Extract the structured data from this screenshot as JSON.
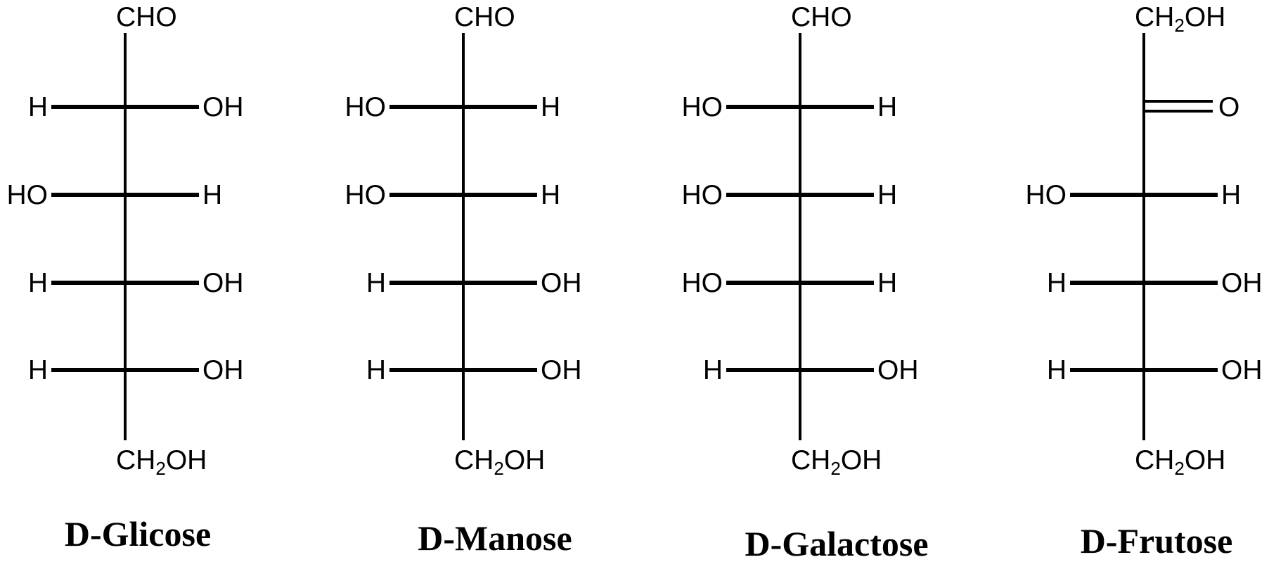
{
  "colors": {
    "background": "#ffffff",
    "ink": "#000000"
  },
  "molecules": [
    {
      "name": "D-Glicose",
      "top_group": "CHO",
      "bottom_group": "CH2OH",
      "rows": [
        {
          "type": "substituent",
          "left": "H",
          "right": "OH"
        },
        {
          "type": "substituent",
          "left": "HO",
          "right": "H"
        },
        {
          "type": "substituent",
          "left": "H",
          "right": "OH"
        },
        {
          "type": "substituent",
          "left": "H",
          "right": "OH"
        }
      ]
    },
    {
      "name": "D-Manose",
      "top_group": "CHO",
      "bottom_group": "CH2OH",
      "rows": [
        {
          "type": "substituent",
          "left": "HO",
          "right": "H"
        },
        {
          "type": "substituent",
          "left": "HO",
          "right": "H"
        },
        {
          "type": "substituent",
          "left": "H",
          "right": "OH"
        },
        {
          "type": "substituent",
          "left": "H",
          "right": "OH"
        }
      ]
    },
    {
      "name": "D-Galactose",
      "top_group": "CHO",
      "bottom_group": "CH2OH",
      "rows": [
        {
          "type": "substituent",
          "left": "HO",
          "right": "H"
        },
        {
          "type": "substituent",
          "left": "HO",
          "right": "H"
        },
        {
          "type": "substituent",
          "left": "HO",
          "right": "H"
        },
        {
          "type": "substituent",
          "left": "H",
          "right": "OH"
        }
      ]
    },
    {
      "name": "D-Frutose",
      "top_group": "CH2OH",
      "bottom_group": "CH2OH",
      "rows": [
        {
          "type": "double_bond",
          "right": "O"
        },
        {
          "type": "substituent",
          "left": "HO",
          "right": "H"
        },
        {
          "type": "substituent",
          "left": "H",
          "right": "OH"
        },
        {
          "type": "substituent",
          "left": "H",
          "right": "OH"
        }
      ]
    }
  ]
}
